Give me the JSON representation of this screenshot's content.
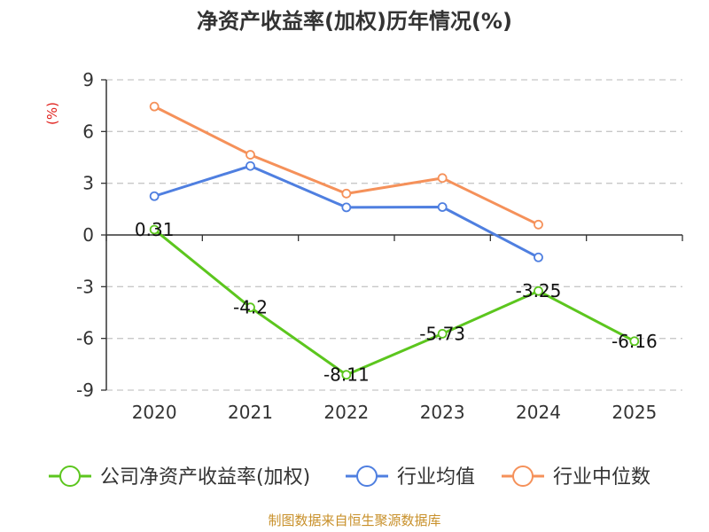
{
  "chart_data": {
    "type": "line",
    "title": "净资产收益率(加权)历年情况(%)",
    "ylabel": "(%)",
    "xlabel": "",
    "categories": [
      "2020",
      "2021",
      "2022",
      "2023",
      "2024",
      "2025"
    ],
    "ylim": [
      -9,
      9
    ],
    "yticks": [
      9,
      6,
      3,
      0,
      -3,
      -6,
      -9
    ],
    "grid": true,
    "legend_position": "bottom",
    "series": [
      {
        "name": "公司净资产收益率(加权)",
        "color": "#5cc61e",
        "values": [
          0.31,
          -4.2,
          -8.11,
          -5.73,
          -3.25,
          -6.16
        ],
        "labels": [
          "0.31",
          "-4.2",
          "-8.11",
          "-5.73",
          "-3.25",
          "-6.16"
        ]
      },
      {
        "name": "行业均值",
        "color": "#4f7fe0",
        "values": [
          2.25,
          4.0,
          1.6,
          1.62,
          -1.3,
          null
        ]
      },
      {
        "name": "行业中位数",
        "color": "#f5915a",
        "values": [
          7.45,
          4.65,
          2.4,
          3.3,
          0.6,
          null
        ]
      }
    ],
    "source": "制图数据来自恒生聚源数据库"
  }
}
